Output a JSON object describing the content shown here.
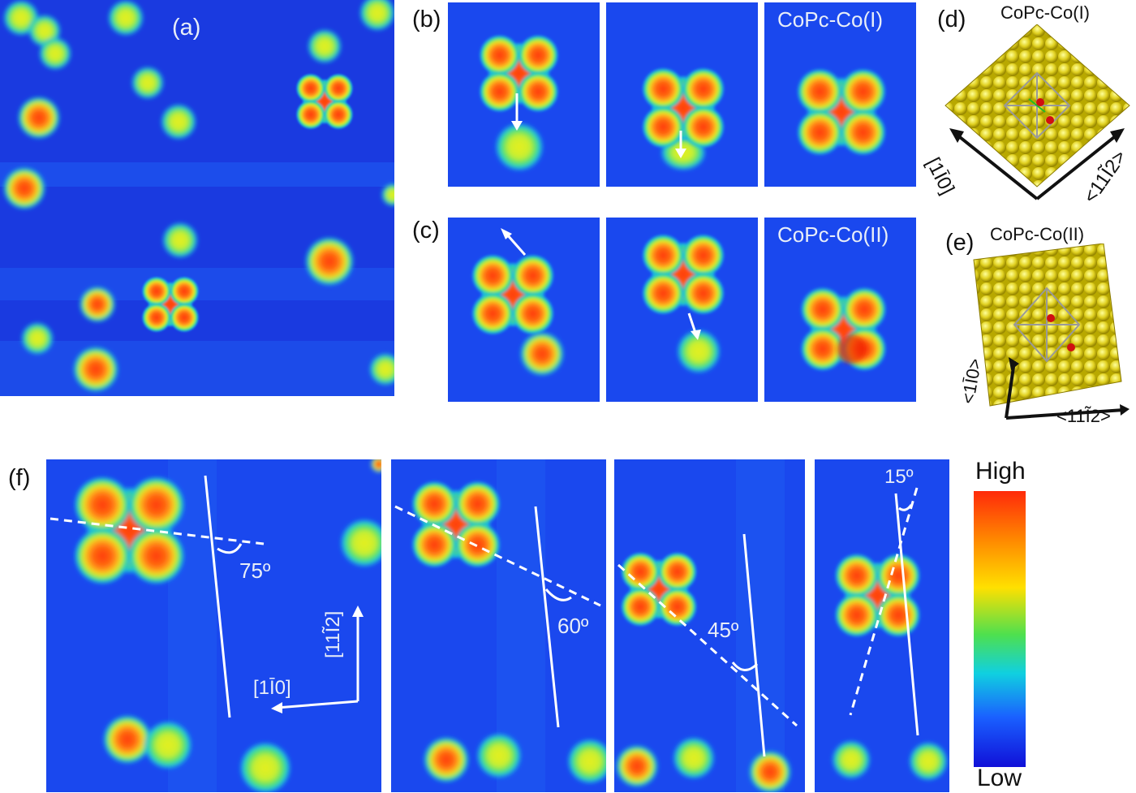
{
  "panel_labels": {
    "a": "(a)",
    "b": "(b)",
    "c": "(c)",
    "d": "(d)",
    "e": "(e)",
    "f": "(f)"
  },
  "row_b_title": "CoPc-Co(I)",
  "row_c_title": "CoPc-Co(II)",
  "model_d": {
    "title": "CoPc-Co(I)",
    "axis_left": "[1Ī0]",
    "axis_right": "<11Ĩ2>"
  },
  "model_e": {
    "title": "CoPc-Co(II)",
    "axis_left": "<1Ī0>",
    "axis_right": "<11Ĩ2>"
  },
  "f_angles": [
    "75º",
    "60º",
    "45º",
    "15º"
  ],
  "f_axes": {
    "horizontal": "[1Ī0]",
    "vertical": "[11Ĩ2]"
  },
  "colorbar": {
    "high": "High",
    "low": "Low",
    "colors": [
      "#ff2a0a",
      "#ff8a00",
      "#ffe000",
      "#4ee04e",
      "#10d0e0",
      "#1a60ff",
      "#1010d8"
    ]
  }
}
